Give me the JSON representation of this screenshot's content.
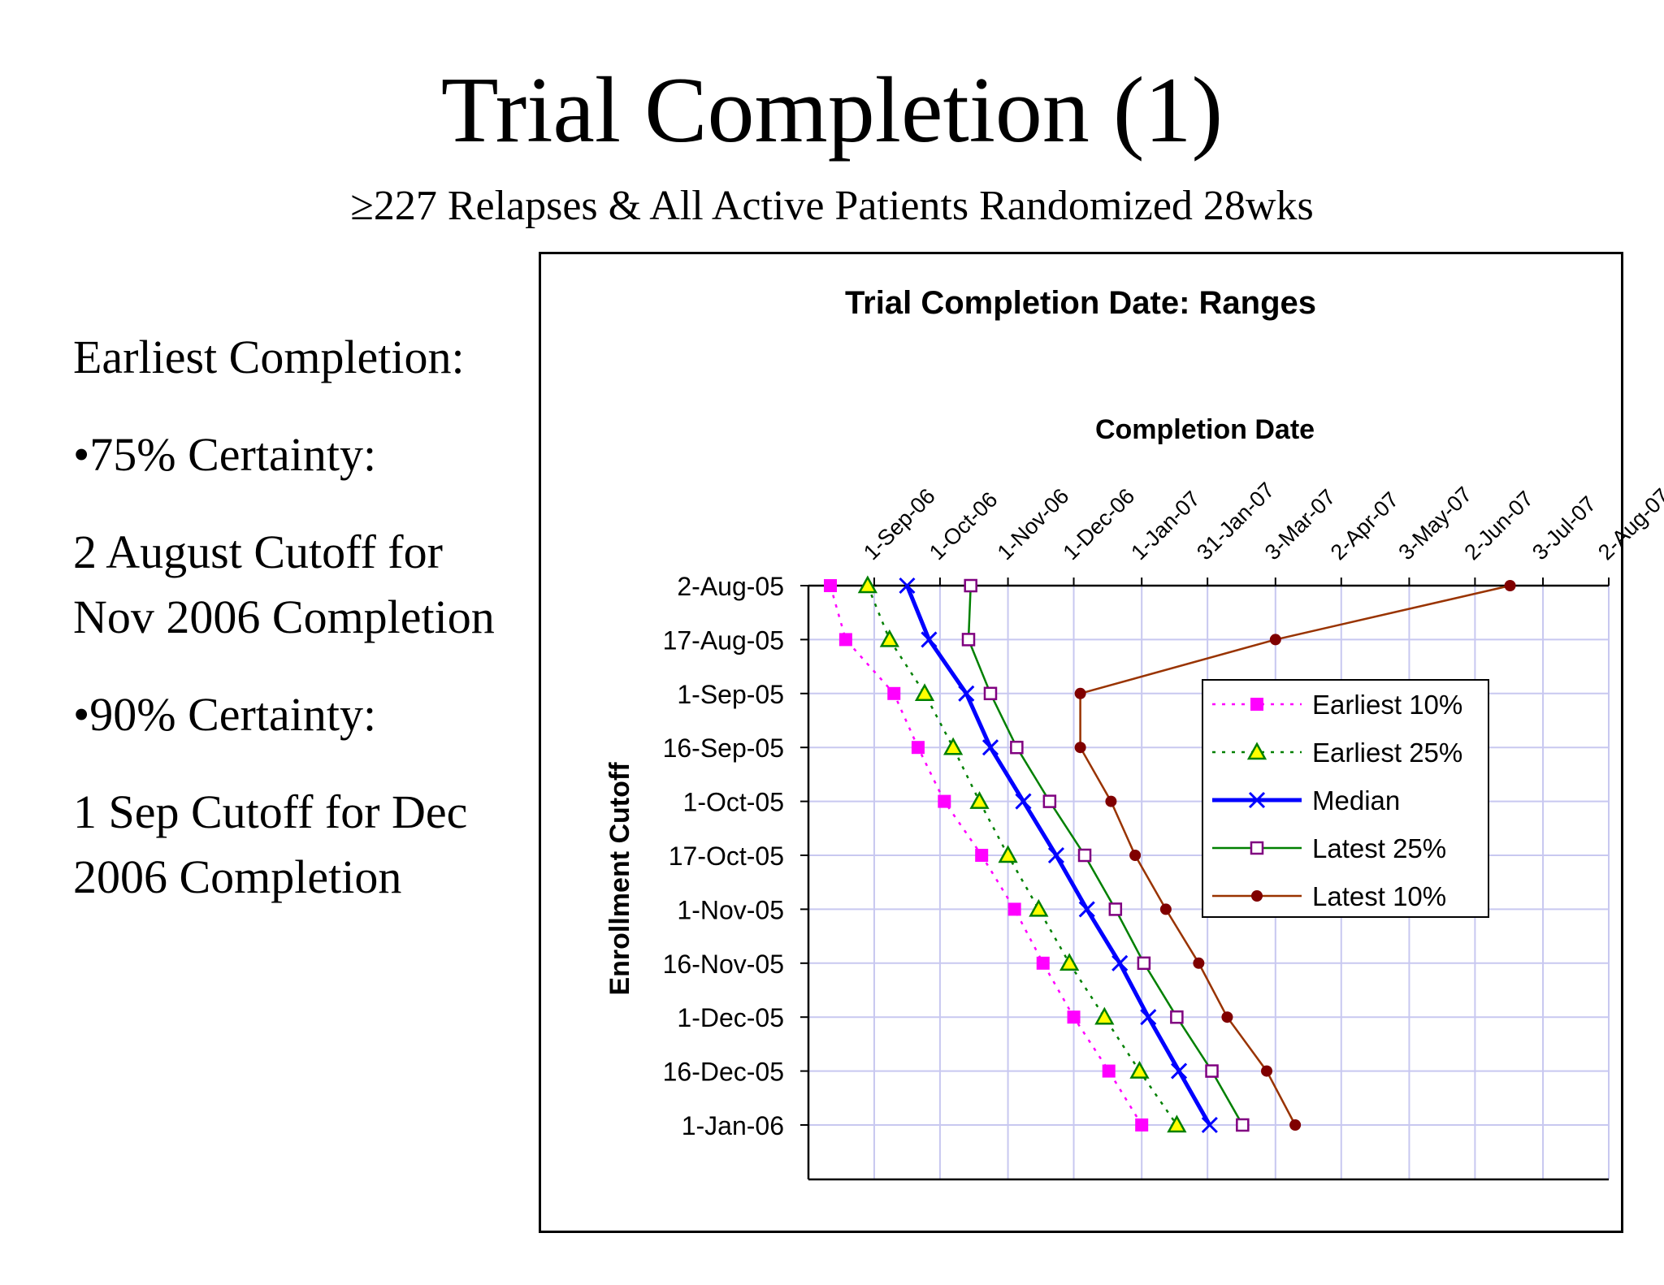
{
  "slide": {
    "title": "Trial Completion (1)",
    "subtitle": "≥227 Relapses & All Active Patients Randomized 28wks",
    "left_text": [
      "Earliest Completion:",
      "•75% Certainty:",
      "2 August Cutoff for Nov 2006 Completion",
      "•90% Certainty:",
      "1 Sep Cutoff for Dec 2006 Completion"
    ]
  },
  "chart_data": {
    "type": "line",
    "title": "Trial Completion Date: Ranges",
    "xlabel": "Completion Date",
    "ylabel": "Enrollment Cutoff",
    "x_axis_position": "top",
    "x_ticks": [
      "1-Sep-06",
      "1-Oct-06",
      "1-Nov-06",
      "1-Dec-06",
      "1-Jan-07",
      "31-Jan-07",
      "3-Mar-07",
      "2-Apr-07",
      "3-May-07",
      "2-Jun-07",
      "3-Jul-07",
      "2-Aug-07"
    ],
    "xlim": [
      "2006-08-02",
      "2007-08-02"
    ],
    "categories": [
      "2-Aug-05",
      "17-Aug-05",
      "1-Sep-05",
      "16-Sep-05",
      "1-Oct-05",
      "17-Oct-05",
      "1-Nov-05",
      "16-Nov-05",
      "1-Dec-05",
      "16-Dec-05",
      "1-Jan-06"
    ],
    "y_inverted": true,
    "grid": true,
    "legend_position": "right, inside plot",
    "series": [
      {
        "name": "Earliest 10%",
        "color": "#ff00ff",
        "line": "dotted",
        "marker": "square",
        "values": [
          "2006-08-12",
          "2006-08-19",
          "2006-09-10",
          "2006-09-21",
          "2006-10-03",
          "2006-10-20",
          "2006-11-04",
          "2006-11-17",
          "2006-12-01",
          "2006-12-17",
          "2007-01-01"
        ]
      },
      {
        "name": "Earliest 25%",
        "color": "#008000",
        "line": "dotted",
        "marker": "triangle",
        "values": [
          "2006-08-29",
          "2006-09-08",
          "2006-09-24",
          "2006-10-07",
          "2006-10-19",
          "2006-11-01",
          "2006-11-15",
          "2006-11-29",
          "2006-12-15",
          "2006-12-31",
          "2007-01-17"
        ]
      },
      {
        "name": "Median",
        "color": "#0000ff",
        "line": "solid-thick",
        "marker": "x",
        "values": [
          "2006-09-16",
          "2006-09-26",
          "2006-10-13",
          "2006-10-24",
          "2006-11-08",
          "2006-11-23",
          "2006-12-07",
          "2006-12-22",
          "2007-01-04",
          "2007-01-18",
          "2007-02-01"
        ]
      },
      {
        "name": "Latest 25%",
        "color": "#008000",
        "line": "solid",
        "marker": "open-square",
        "marker_color": "#800080",
        "values": [
          "2006-10-15",
          "2006-10-14",
          "2006-10-24",
          "2006-11-05",
          "2006-11-20",
          "2006-12-06",
          "2006-12-20",
          "2007-01-02",
          "2007-01-17",
          "2007-02-02",
          "2007-02-16"
        ]
      },
      {
        "name": "Latest 10%",
        "color": "#993300",
        "line": "solid",
        "marker": "circle",
        "marker_color": "#800000",
        "values": [
          "2007-06-18",
          "2007-03-03",
          "2006-12-04",
          "2006-12-04",
          "2006-12-18",
          "2006-12-29",
          "2007-01-12",
          "2007-01-27",
          "2007-02-09",
          "2007-02-27",
          "2007-03-12"
        ]
      }
    ]
  }
}
